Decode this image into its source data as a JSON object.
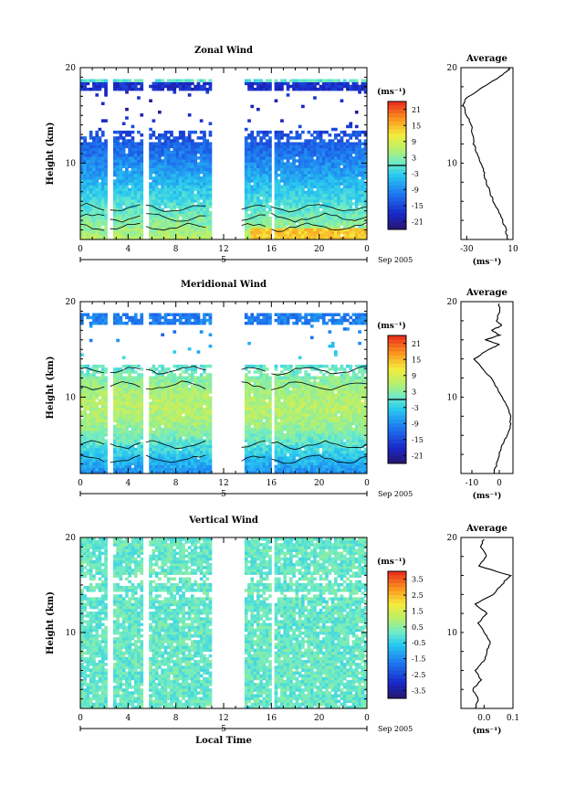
{
  "chart_data": [
    {
      "type": "heatmap",
      "title": "Zonal Wind",
      "ylabel": "Height (km)",
      "xlabel": "",
      "ylim": [
        2,
        20
      ],
      "xlim": [
        0,
        24
      ],
      "xticks": [
        "0",
        "4",
        "8",
        "12",
        "16",
        "20",
        "0"
      ],
      "yticks": [
        "10",
        "20"
      ],
      "day_marker": "5",
      "date_label": "Sep 2005",
      "colorbar": {
        "unit": "(ms⁻¹)",
        "range": [
          -24,
          24
        ],
        "ticks": [
          "21",
          "15",
          "9",
          "3",
          "-3",
          "-9",
          "-15",
          "-21"
        ],
        "contour_at": 0
      },
      "average": {
        "title": "Average",
        "xlabel": "(ms⁻¹)",
        "xlim": [
          -35,
          10
        ],
        "xticks": [
          "-30",
          "10"
        ],
        "yticks": [
          "10",
          "20"
        ],
        "profile": [
          [
            2.0,
            5
          ],
          [
            3.0,
            4
          ],
          [
            4.0,
            1
          ],
          [
            5.0,
            -3
          ],
          [
            6.0,
            -7
          ],
          [
            7.0,
            -10
          ],
          [
            8.0,
            -13
          ],
          [
            9.0,
            -15
          ],
          [
            10.0,
            -18
          ],
          [
            11.0,
            -21
          ],
          [
            12.0,
            -24
          ],
          [
            13.0,
            -25
          ],
          [
            14.0,
            -26
          ],
          [
            15.0,
            -30
          ],
          [
            16.0,
            -33
          ],
          [
            16.6,
            -32
          ],
          [
            17.0,
            -28
          ],
          [
            18.0,
            -15
          ],
          [
            19.0,
            -2
          ],
          [
            19.6,
            5
          ],
          [
            20.0,
            8
          ]
        ]
      },
      "gaps": [
        [
          2.1,
          2.5
        ],
        [
          5.2,
          5.5
        ],
        [
          10.8,
          13.6
        ],
        [
          15.9,
          16.2
        ]
      ],
      "valid_top_km": [
        [
          0,
          13
        ],
        [
          13.6,
          13
        ]
      ]
    },
    {
      "type": "heatmap",
      "title": "Meridional Wind",
      "ylabel": "Height (km)",
      "xlabel": "",
      "ylim": [
        2,
        20
      ],
      "xlim": [
        0,
        24
      ],
      "xticks": [
        "0",
        "4",
        "8",
        "12",
        "16",
        "20",
        "0"
      ],
      "yticks": [
        "10",
        "20"
      ],
      "day_marker": "5",
      "date_label": "Sep 2005",
      "colorbar": {
        "unit": "(ms⁻¹)",
        "range": [
          -24,
          24
        ],
        "ticks": [
          "21",
          "15",
          "9",
          "3",
          "-3",
          "-9",
          "-15",
          "-21"
        ],
        "contour_at": 0
      },
      "average": {
        "title": "Average",
        "xlabel": "(ms⁻¹)",
        "xlim": [
          -14,
          5
        ],
        "xticks": [
          "-10",
          "0"
        ],
        "yticks": [
          "10",
          "20"
        ],
        "profile": [
          [
            2.0,
            -2
          ],
          [
            3.0,
            -1
          ],
          [
            4.0,
            0
          ],
          [
            5.0,
            1
          ],
          [
            6.0,
            3
          ],
          [
            7.0,
            4
          ],
          [
            8.0,
            4
          ],
          [
            9.0,
            3
          ],
          [
            10.0,
            1
          ],
          [
            11.0,
            -1
          ],
          [
            12.0,
            -3
          ],
          [
            13.0,
            -6
          ],
          [
            14.0,
            -9
          ],
          [
            15.0,
            -4
          ],
          [
            15.5,
            0
          ],
          [
            16.0,
            -5
          ],
          [
            16.5,
            0
          ],
          [
            17.0,
            -3
          ],
          [
            17.5,
            1
          ],
          [
            18.0,
            -1
          ],
          [
            19.0,
            0
          ],
          [
            20.0,
            0
          ]
        ]
      },
      "gaps": [
        [
          2.1,
          2.5
        ],
        [
          5.2,
          5.5
        ],
        [
          10.8,
          13.6
        ],
        [
          15.9,
          16.2
        ]
      ],
      "valid_top_km": [
        [
          0,
          13.5
        ],
        [
          13.6,
          13
        ]
      ]
    },
    {
      "type": "heatmap",
      "title": "Vertical Wind",
      "ylabel": "Height (km)",
      "xlabel": "Local Time",
      "ylim": [
        2,
        20
      ],
      "xlim": [
        0,
        24
      ],
      "xticks": [
        "0",
        "4",
        "8",
        "12",
        "16",
        "20",
        "0"
      ],
      "yticks": [
        "10",
        "20"
      ],
      "day_marker": "5",
      "date_label": "Sep 2005",
      "colorbar": {
        "unit": "(ms⁻¹)",
        "range": [
          -4,
          4
        ],
        "ticks": [
          "3.5",
          "2.5",
          "1.5",
          "0.5",
          "-0.5",
          "-1.5",
          "-2.5",
          "-3.5"
        ]
      },
      "average": {
        "title": "Average",
        "xlabel": "(ms⁻¹)",
        "xlim": [
          -0.08,
          0.1
        ],
        "xticks": [
          "0.0",
          "0.1"
        ],
        "yticks": [
          "10",
          "20"
        ],
        "profile": [
          [
            2.0,
            -0.03
          ],
          [
            3.0,
            -0.02
          ],
          [
            4.0,
            -0.04
          ],
          [
            5.0,
            -0.01
          ],
          [
            6.0,
            -0.03
          ],
          [
            7.0,
            0.0
          ],
          [
            8.0,
            0.01
          ],
          [
            9.0,
            0.02
          ],
          [
            10.0,
            0.0
          ],
          [
            11.0,
            -0.02
          ],
          [
            12.0,
            0.01
          ],
          [
            13.0,
            -0.03
          ],
          [
            14.0,
            0.03
          ],
          [
            15.0,
            0.06
          ],
          [
            16.0,
            0.09
          ],
          [
            17.0,
            -0.02
          ],
          [
            18.0,
            0.01
          ],
          [
            19.0,
            -0.01
          ],
          [
            20.0,
            0.0
          ]
        ]
      },
      "gaps": [
        [
          2.1,
          2.5
        ],
        [
          5.2,
          5.5
        ],
        [
          10.8,
          13.6
        ],
        [
          15.9,
          16.2
        ]
      ],
      "valid_top_km": [
        [
          0,
          20
        ],
        [
          13.6,
          20
        ]
      ]
    }
  ]
}
